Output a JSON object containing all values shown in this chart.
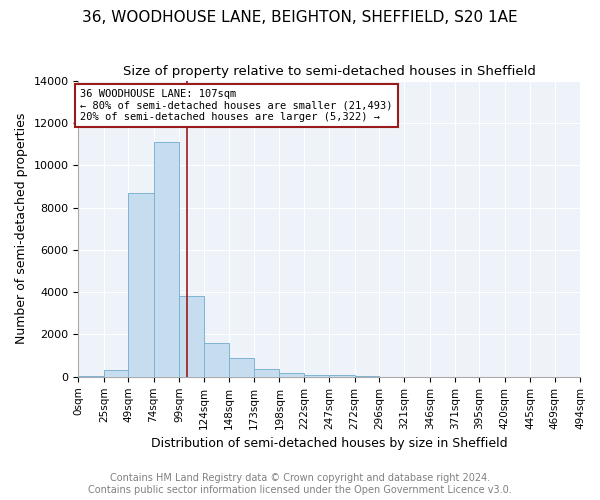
{
  "title": "36, WOODHOUSE LANE, BEIGHTON, SHEFFIELD, S20 1AE",
  "subtitle": "Size of property relative to semi-detached houses in Sheffield",
  "xlabel": "Distribution of semi-detached houses by size in Sheffield",
  "ylabel": "Number of semi-detached properties",
  "footer1": "Contains HM Land Registry data © Crown copyright and database right 2024.",
  "footer2": "Contains public sector information licensed under the Open Government Licence v3.0.",
  "annotation_line1": "36 WOODHOUSE LANE: 107sqm",
  "annotation_line2": "← 80% of semi-detached houses are smaller (21,493)",
  "annotation_line3": "20% of semi-detached houses are larger (5,322) →",
  "property_size": 107,
  "bin_edges": [
    0,
    25,
    49,
    74,
    99,
    124,
    148,
    173,
    198,
    222,
    247,
    272,
    296,
    321,
    346,
    371,
    395,
    420,
    445,
    469,
    494
  ],
  "bar_heights": [
    25,
    300,
    8700,
    11100,
    3800,
    1600,
    900,
    380,
    200,
    100,
    75,
    50,
    15,
    10,
    5,
    5,
    3,
    2,
    1,
    1
  ],
  "bar_color": "#c6ddf0",
  "bar_edge_color": "#7fb3d3",
  "red_line_color": "#9b1a1a",
  "annotation_box_color": "#9b1a1a",
  "ylim": [
    0,
    14000
  ],
  "background_color": "#eef2f9",
  "tick_labels": [
    "0sqm",
    "25sqm",
    "49sqm",
    "74sqm",
    "99sqm",
    "124sqm",
    "148sqm",
    "173sqm",
    "198sqm",
    "222sqm",
    "247sqm",
    "272sqm",
    "296sqm",
    "321sqm",
    "346sqm",
    "371sqm",
    "395sqm",
    "420sqm",
    "445sqm",
    "469sqm",
    "494sqm"
  ],
  "title_fontsize": 11,
  "subtitle_fontsize": 9.5,
  "label_fontsize": 9,
  "tick_fontsize": 7.5,
  "footer_fontsize": 7
}
